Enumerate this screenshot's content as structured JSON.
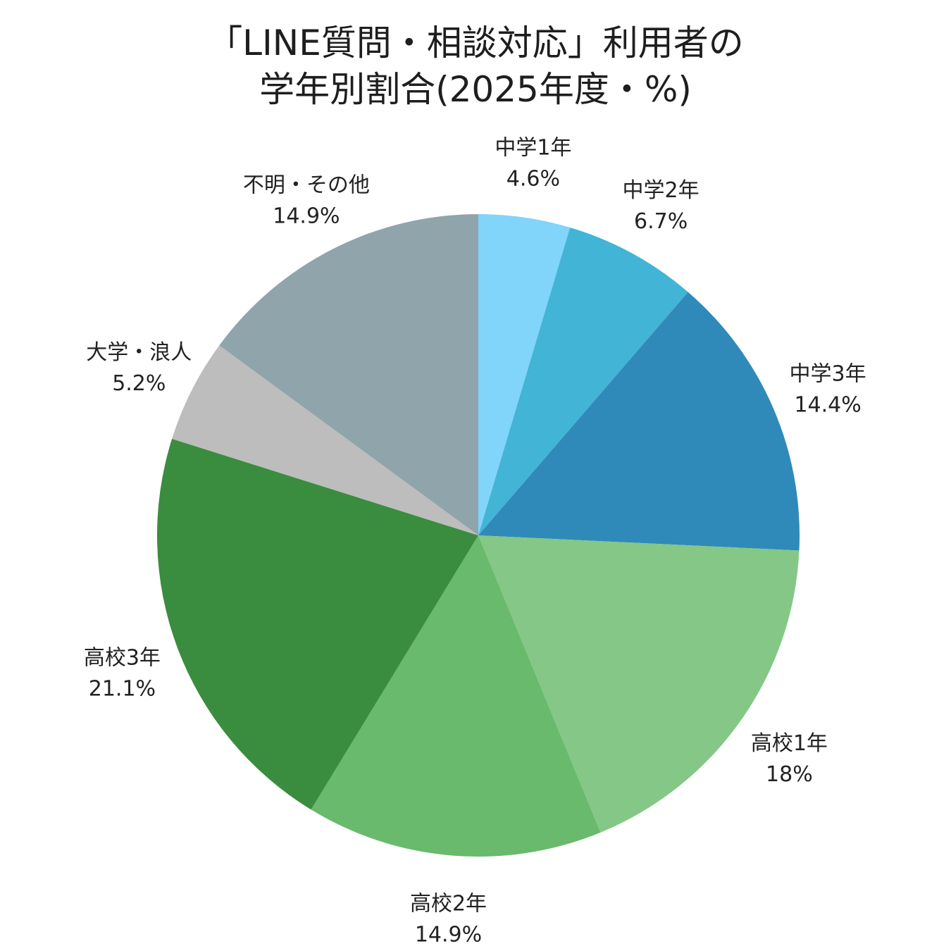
{
  "title": {
    "line1": "「LINE質問・相談対応」利用者の",
    "line2": "学年別割合(2025年度・%)"
  },
  "chart_data": {
    "type": "pie",
    "start_angle_deg": 0,
    "direction": "clockwise",
    "labels_outside": true,
    "slices": [
      {
        "name": "中学1年",
        "value": 4.6,
        "label": "4.6%",
        "color": "#81D4FA"
      },
      {
        "name": "中学2年",
        "value": 6.7,
        "label": "6.7%",
        "color": "#42B4D6"
      },
      {
        "name": "中学3年",
        "value": 14.4,
        "label": "14.4%",
        "color": "#2F8AB9"
      },
      {
        "name": "高校1年",
        "value": 18,
        "label": "18%",
        "color": "#84C786"
      },
      {
        "name": "高校2年",
        "value": 14.9,
        "label": "14.9%",
        "color": "#69BA6C"
      },
      {
        "name": "高校3年",
        "value": 21.1,
        "label": "21.1%",
        "color": "#3A8D3E"
      },
      {
        "name": "大学・浪人",
        "value": 5.2,
        "label": "5.2%",
        "color": "#BDBDBD"
      },
      {
        "name": "不明・その他",
        "value": 14.9,
        "label": "14.9%",
        "color": "#90A4AB"
      }
    ]
  }
}
